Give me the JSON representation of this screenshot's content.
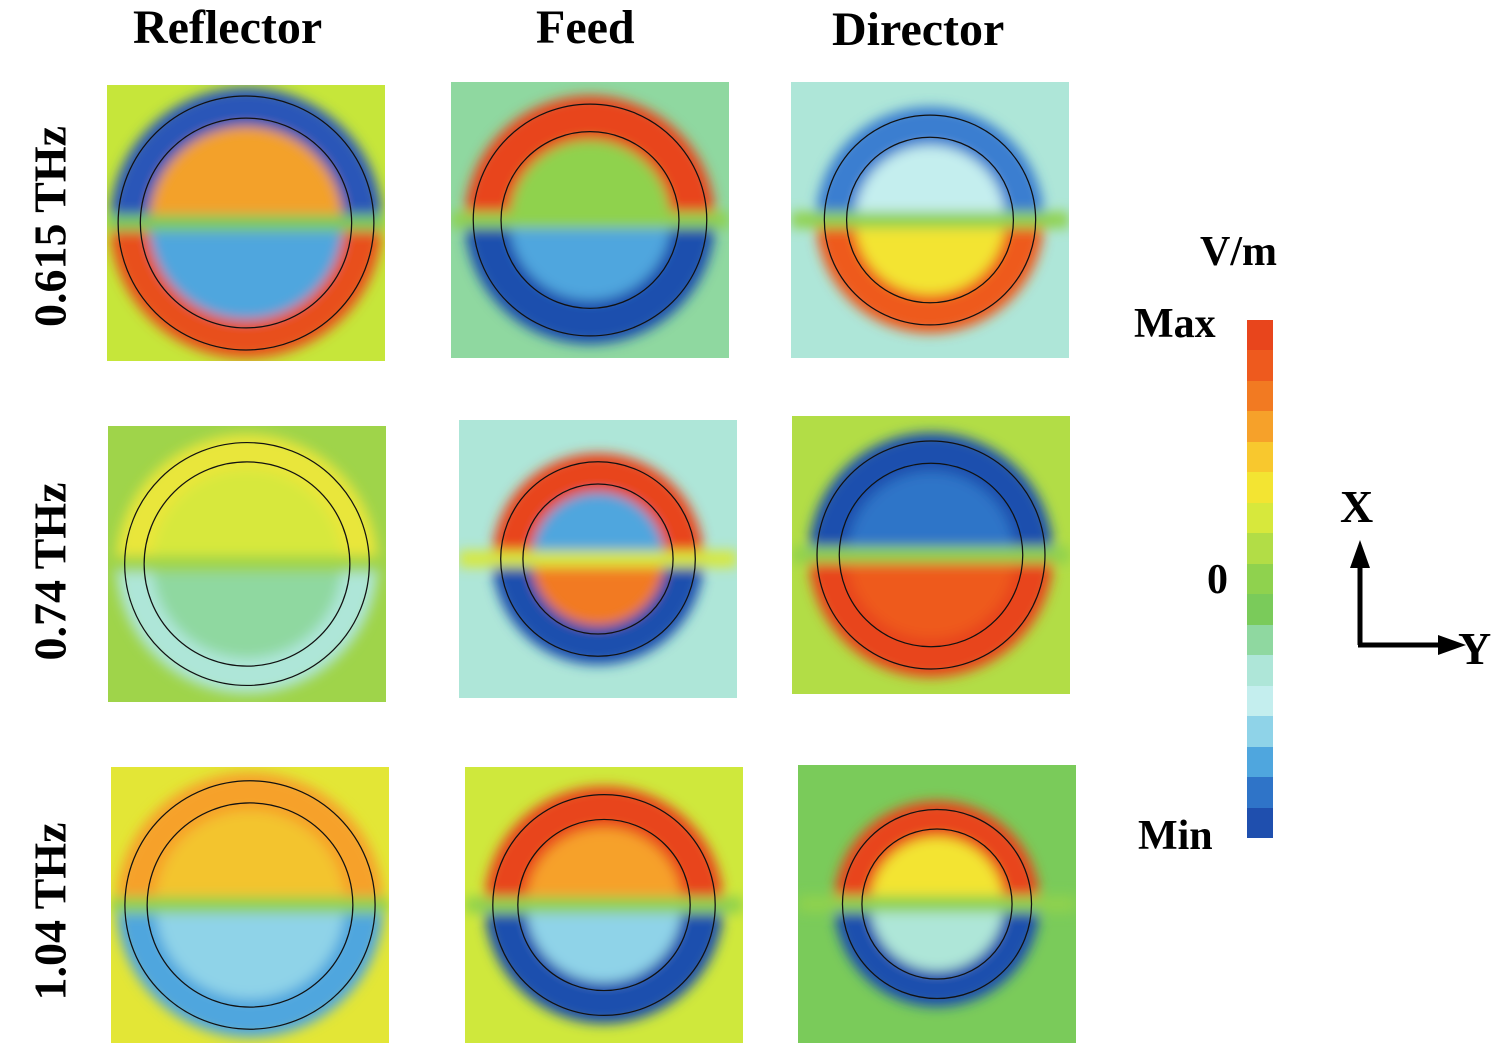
{
  "columns": [
    "Reflector",
    "Feed",
    "Director"
  ],
  "rows": [
    "0.615 THz",
    "0.74 THz",
    "1.04 THz"
  ],
  "colorbar": {
    "unit": "V/m",
    "max_label": "Max",
    "zero_label": "0",
    "min_label": "Min",
    "colors": [
      "#e8451c",
      "#ee5a1e",
      "#f27a22",
      "#f6a12a",
      "#f8c82e",
      "#f3e432",
      "#d7e83c",
      "#b2dd46",
      "#8fd24e",
      "#7acb5a",
      "#8fd8a0",
      "#aee6d8",
      "#c4eeee",
      "#8fd3e8",
      "#4fa6de",
      "#2f74c8",
      "#1f4fae"
    ]
  },
  "axes": {
    "vertical": "X",
    "horizontal": "Y"
  },
  "panels": [
    {
      "row": 0,
      "col": 0,
      "bg": "#c6e63a",
      "top": "#2956b8",
      "bottom": "#e8501c",
      "innerTop": "#f3a12a",
      "innerBottom": "#4fa6de",
      "center": "#7ccb5a",
      "ring_r": [
        0.46,
        0.38
      ]
    },
    {
      "row": 0,
      "col": 1,
      "bg": "#8fd8a0",
      "top": "#e8451c",
      "bottom": "#1f4fae",
      "innerTop": "#8fd24e",
      "innerBottom": "#4fa6de",
      "center": "#8fd24e",
      "ring_r": [
        0.42,
        0.32
      ]
    },
    {
      "row": 0,
      "col": 2,
      "bg": "#aee6d8",
      "top": "#3b7ed0",
      "bottom": "#ee5a1e",
      "innerTop": "#c4eeee",
      "innerBottom": "#f3e432",
      "center": "#8fd24e",
      "ring_r": [
        0.38,
        0.3
      ]
    },
    {
      "row": 1,
      "col": 0,
      "bg": "#9fd44a",
      "top": "#e9e63a",
      "bottom": "#aee6d8",
      "innerTop": "#d7e83c",
      "innerBottom": "#8fd8a0",
      "center": "#9fd44a",
      "ring_r": [
        0.44,
        0.37
      ]
    },
    {
      "row": 1,
      "col": 1,
      "bg": "#aee6d8",
      "top": "#e8451c",
      "bottom": "#1f4fae",
      "innerTop": "#4fa6de",
      "innerBottom": "#f27a22",
      "center": "#d7e83c",
      "ring_r": [
        0.35,
        0.27
      ]
    },
    {
      "row": 1,
      "col": 2,
      "bg": "#b2dd46",
      "top": "#1f4fae",
      "bottom": "#e8451c",
      "innerTop": "#2f74c8",
      "innerBottom": "#ee5a1e",
      "center": "#8fd24e",
      "ring_r": [
        0.41,
        0.33
      ]
    },
    {
      "row": 2,
      "col": 0,
      "bg": "#e3e636",
      "top": "#f6a12a",
      "bottom": "#4fa6de",
      "innerTop": "#f3c42e",
      "innerBottom": "#8fd3e8",
      "center": "#8fd24e",
      "ring_r": [
        0.45,
        0.37
      ]
    },
    {
      "row": 2,
      "col": 1,
      "bg": "#cfe83c",
      "top": "#e8451c",
      "bottom": "#1f4fae",
      "innerTop": "#f6a12a",
      "innerBottom": "#8fd3e8",
      "center": "#8fd24e",
      "ring_r": [
        0.4,
        0.31
      ]
    },
    {
      "row": 2,
      "col": 2,
      "bg": "#7acb5a",
      "top": "#e8451c",
      "bottom": "#1f4fae",
      "innerTop": "#f3e432",
      "innerBottom": "#aee6d8",
      "center": "#8fd24e",
      "ring_r": [
        0.34,
        0.27
      ]
    }
  ]
}
